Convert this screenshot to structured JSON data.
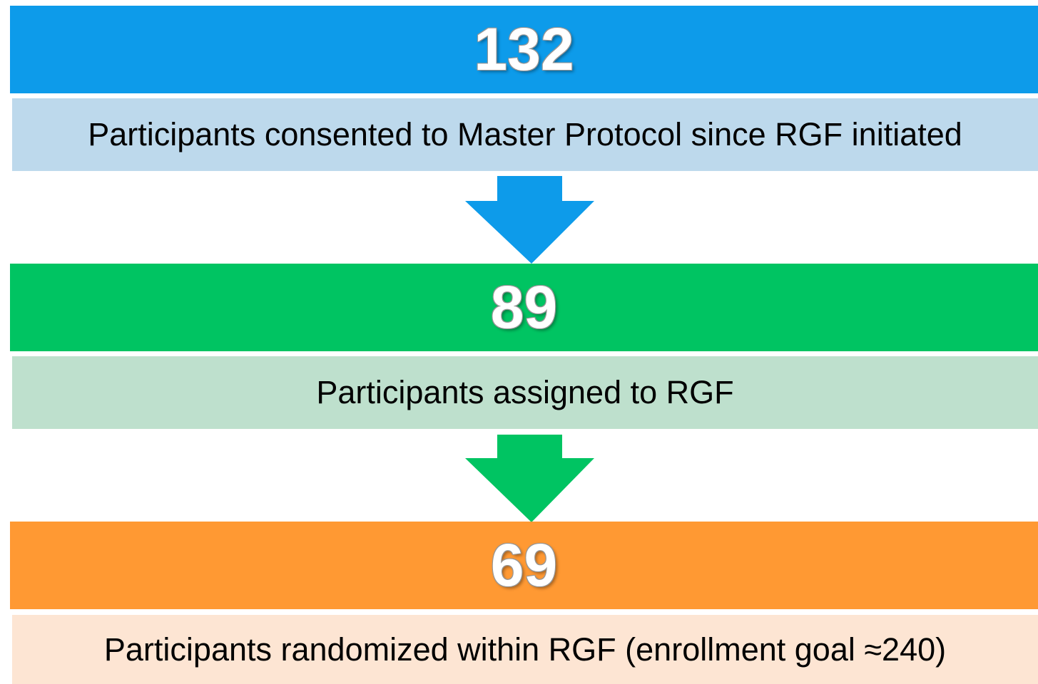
{
  "stages": [
    {
      "number": 132,
      "label": "Participants consented to Master Protocol since RGF initiated"
    },
    {
      "number": 89,
      "label": "Participants assigned to RGF"
    },
    {
      "number": 69,
      "label": "Participants randomized within RGF (enrollment goal ≈240)"
    }
  ]
}
